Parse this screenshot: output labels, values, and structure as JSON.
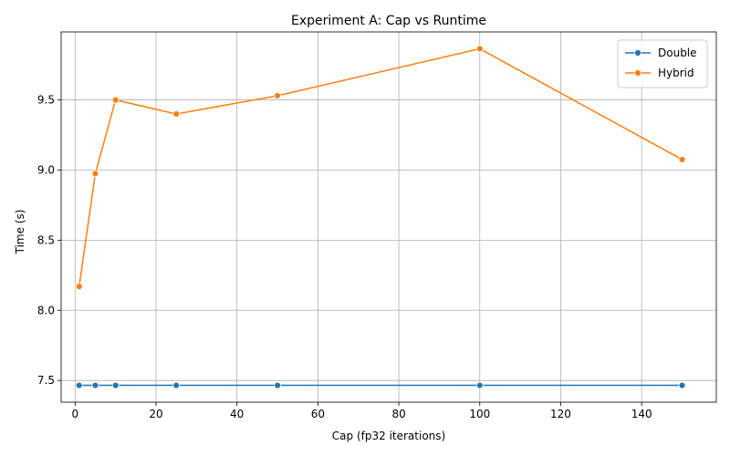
{
  "chart_data": {
    "type": "line",
    "title": "Experiment A: Cap vs Runtime",
    "xlabel": "Cap (fp32 iterations)",
    "ylabel": "Time (s)",
    "xlim": [
      -3.45,
      158.45
    ],
    "ylim": [
      7.345,
      9.985
    ],
    "xticks": [
      0,
      20,
      40,
      60,
      80,
      100,
      120,
      140
    ],
    "yticks": [
      7.5,
      8.0,
      8.5,
      9.0,
      9.5
    ],
    "ytick_labels": [
      "7.5",
      "8.0",
      "8.5",
      "9.0",
      "9.5"
    ],
    "grid": true,
    "legend": "top-right",
    "x": [
      1,
      5,
      10,
      25,
      50,
      100,
      150
    ],
    "series": [
      {
        "name": "Double",
        "color": "#1f77b4",
        "marker": "circle",
        "values": [
          7.465,
          7.465,
          7.465,
          7.465,
          7.465,
          7.465,
          7.465
        ]
      },
      {
        "name": "Hybrid",
        "color": "#ff7f0e",
        "marker": "circle",
        "values": [
          8.17,
          8.975,
          9.5,
          9.4,
          9.53,
          9.865,
          9.075
        ]
      }
    ]
  }
}
